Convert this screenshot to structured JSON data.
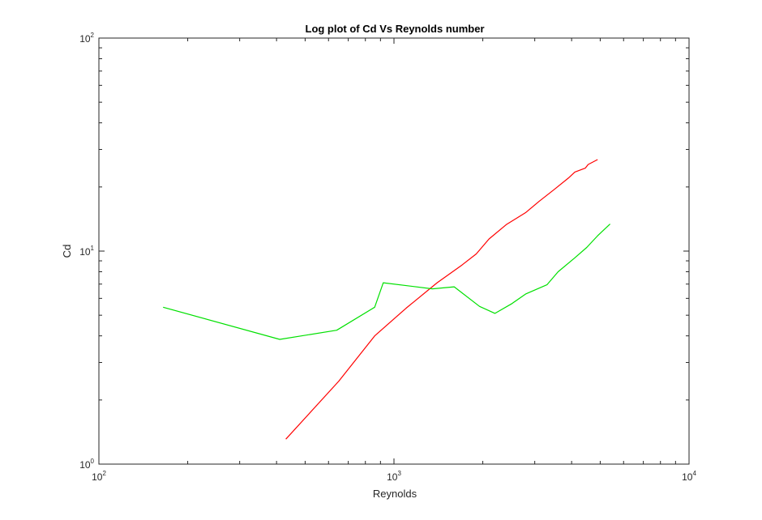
{
  "chart_data": {
    "type": "line",
    "title": "Log plot of Cd Vs Reynolds number",
    "xlabel": "Reynolds",
    "ylabel": "Cd",
    "xscale": "log",
    "yscale": "log",
    "xlim": [
      100,
      10000
    ],
    "ylim": [
      1,
      100
    ],
    "grid": false,
    "legend": "none",
    "x_ticks": [
      {
        "base": "10",
        "exp": "2",
        "value": 100
      },
      {
        "base": "10",
        "exp": "3",
        "value": 1000
      },
      {
        "base": "10",
        "exp": "4",
        "value": 10000
      }
    ],
    "y_ticks": [
      {
        "base": "10",
        "exp": "0",
        "value": 1
      },
      {
        "base": "10",
        "exp": "1",
        "value": 10
      },
      {
        "base": "10",
        "exp": "2",
        "value": 100
      }
    ],
    "series": [
      {
        "color": "#ff0000",
        "points": [
          [
            430,
            1.31
          ],
          [
            650,
            2.45
          ],
          [
            860,
            4.0
          ],
          [
            1100,
            5.4
          ],
          [
            1400,
            7.1
          ],
          [
            1700,
            8.6
          ],
          [
            1900,
            9.7
          ],
          [
            2100,
            11.4
          ],
          [
            2400,
            13.3
          ],
          [
            2800,
            15.2
          ],
          [
            3100,
            17.1
          ],
          [
            3500,
            19.5
          ],
          [
            3900,
            22.0
          ],
          [
            4100,
            23.5
          ],
          [
            4450,
            24.5
          ],
          [
            4550,
            25.5
          ],
          [
            4900,
            26.9
          ]
        ]
      },
      {
        "color": "#00e000",
        "points": [
          [
            165,
            5.45
          ],
          [
            410,
            3.85
          ],
          [
            640,
            4.25
          ],
          [
            860,
            5.45
          ],
          [
            920,
            7.1
          ],
          [
            1350,
            6.65
          ],
          [
            1600,
            6.8
          ],
          [
            1950,
            5.5
          ],
          [
            2200,
            5.1
          ],
          [
            2500,
            5.65
          ],
          [
            2800,
            6.3
          ],
          [
            3300,
            6.95
          ],
          [
            3600,
            8.0
          ],
          [
            4100,
            9.3
          ],
          [
            4500,
            10.4
          ],
          [
            4900,
            11.8
          ],
          [
            5400,
            13.4
          ]
        ]
      }
    ]
  }
}
